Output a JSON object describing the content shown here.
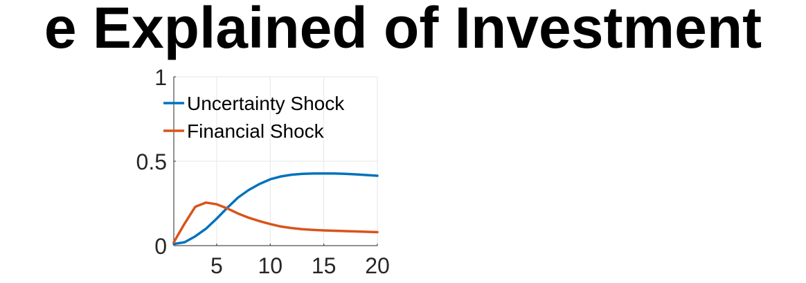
{
  "chart_data": {
    "type": "line",
    "title": "e Explained of Investment",
    "xlabel": "",
    "ylabel": "",
    "xlim": [
      1,
      20
    ],
    "ylim": [
      0,
      1
    ],
    "x_ticks": [
      5,
      10,
      15,
      20
    ],
    "y_ticks": [
      0,
      0.5,
      1
    ],
    "x_tick_labels": [
      "5",
      "10",
      "15",
      "20"
    ],
    "y_tick_labels": [
      "0",
      "0.5",
      "1"
    ],
    "grid": true,
    "legend_position": "top-left",
    "x": [
      1,
      2,
      3,
      4,
      5,
      6,
      7,
      8,
      9,
      10,
      11,
      12,
      13,
      14,
      15,
      16,
      17,
      18,
      19,
      20
    ],
    "series": [
      {
        "name": "Uncertainty Shock",
        "color": "#0072BD",
        "values": [
          0.01,
          0.02,
          0.055,
          0.1,
          0.16,
          0.225,
          0.285,
          0.33,
          0.365,
          0.393,
          0.41,
          0.42,
          0.425,
          0.427,
          0.428,
          0.427,
          0.425,
          0.422,
          0.418,
          0.414
        ]
      },
      {
        "name": "Financial Shock",
        "color": "#D95319",
        "values": [
          0.02,
          0.13,
          0.23,
          0.255,
          0.245,
          0.22,
          0.19,
          0.165,
          0.145,
          0.128,
          0.113,
          0.104,
          0.097,
          0.093,
          0.09,
          0.088,
          0.086,
          0.084,
          0.082,
          0.08
        ]
      }
    ]
  }
}
